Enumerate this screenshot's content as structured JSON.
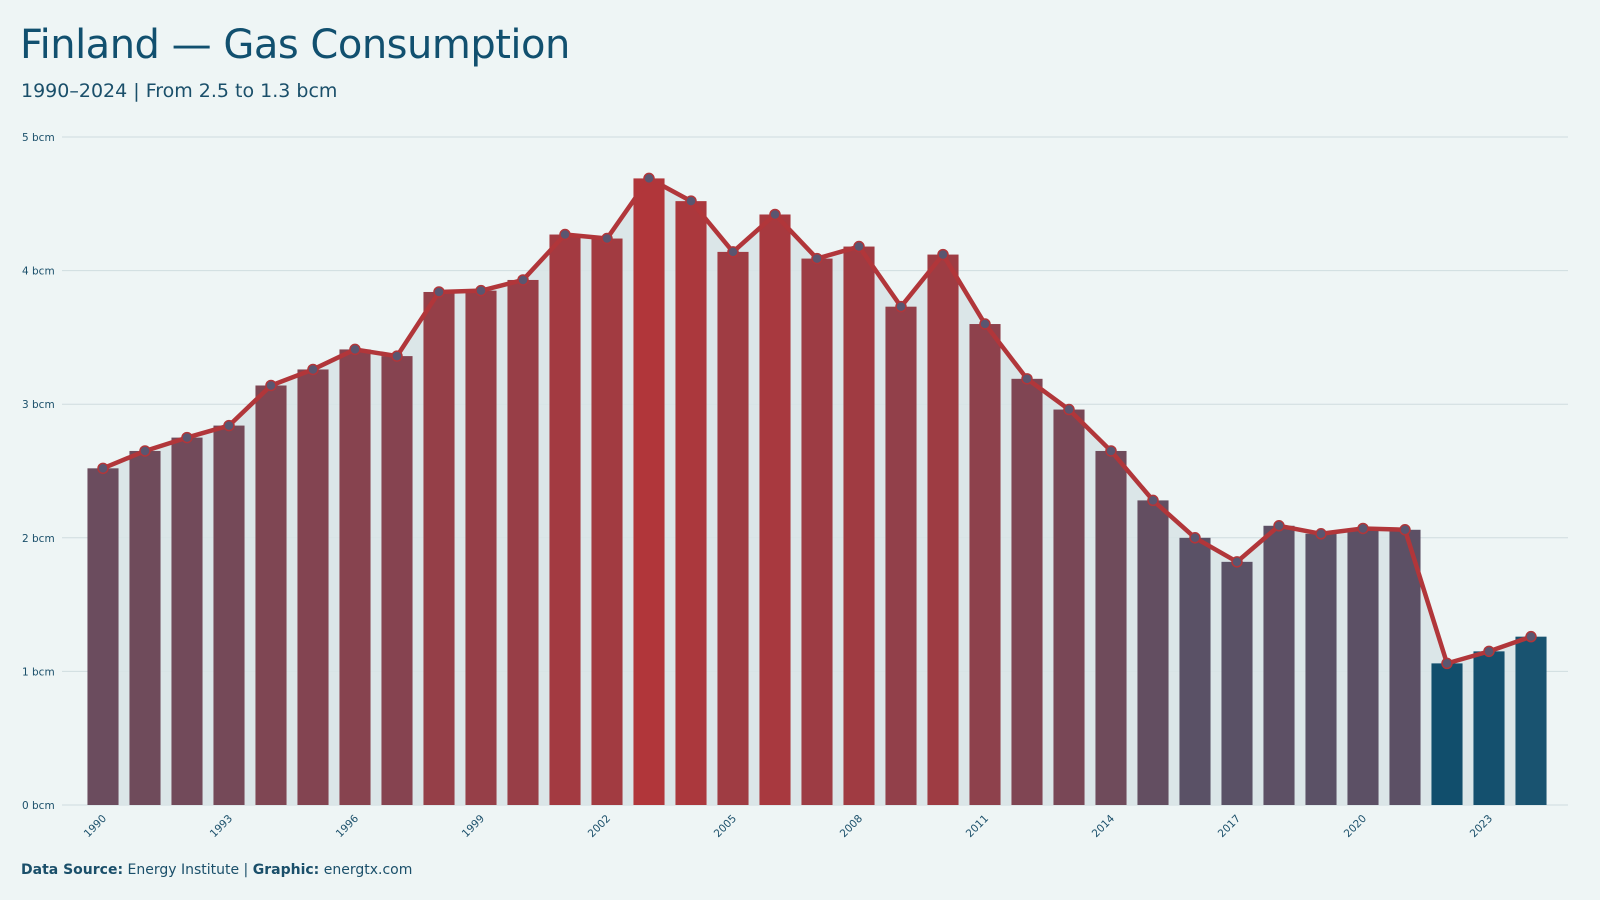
{
  "chart_data": {
    "type": "bar",
    "title": "Finland — Gas Consumption",
    "subtitle": "1990–2024 | From 2.5 to 1.3 bcm",
    "ylabel": "",
    "xlabel": "",
    "ylim": [
      0,
      5
    ],
    "y_ticks": [
      "0 bcm",
      "1 bcm",
      "2 bcm",
      "3 bcm",
      "4 bcm",
      "5 bcm"
    ],
    "x_tick_labels": [
      "1990",
      "1993",
      "1996",
      "1999",
      "2002",
      "2005",
      "2008",
      "2011",
      "2014",
      "2017",
      "2020",
      "2023"
    ],
    "grid": true,
    "categories": [
      "1990",
      "1991",
      "1992",
      "1993",
      "1994",
      "1995",
      "1996",
      "1997",
      "1998",
      "1999",
      "2000",
      "2001",
      "2002",
      "2003",
      "2004",
      "2005",
      "2006",
      "2007",
      "2008",
      "2009",
      "2010",
      "2011",
      "2012",
      "2013",
      "2014",
      "2015",
      "2016",
      "2017",
      "2018",
      "2019",
      "2020",
      "2021",
      "2022",
      "2023",
      "2024"
    ],
    "values": [
      2.52,
      2.65,
      2.75,
      2.84,
      3.14,
      3.26,
      3.41,
      3.36,
      3.84,
      3.85,
      3.93,
      4.27,
      4.24,
      4.69,
      4.52,
      4.14,
      4.42,
      4.09,
      4.18,
      3.73,
      4.12,
      3.6,
      3.19,
      2.96,
      2.65,
      2.28,
      2.0,
      1.82,
      2.09,
      2.03,
      2.07,
      2.06,
      1.06,
      1.15,
      1.26
    ],
    "colors": {
      "high": "#b1363a",
      "mid": "#5a5166",
      "low": "#0e4d6b",
      "line": "#b1363a",
      "marker": "#5a5670",
      "grid": "#cfdcdf",
      "area": "#d8e4e7"
    }
  },
  "footer": {
    "source_label": "Data Source:",
    "source_value": "Energy Institute |",
    "graphic_label": "Graphic:",
    "graphic_value": "energtx.com"
  }
}
